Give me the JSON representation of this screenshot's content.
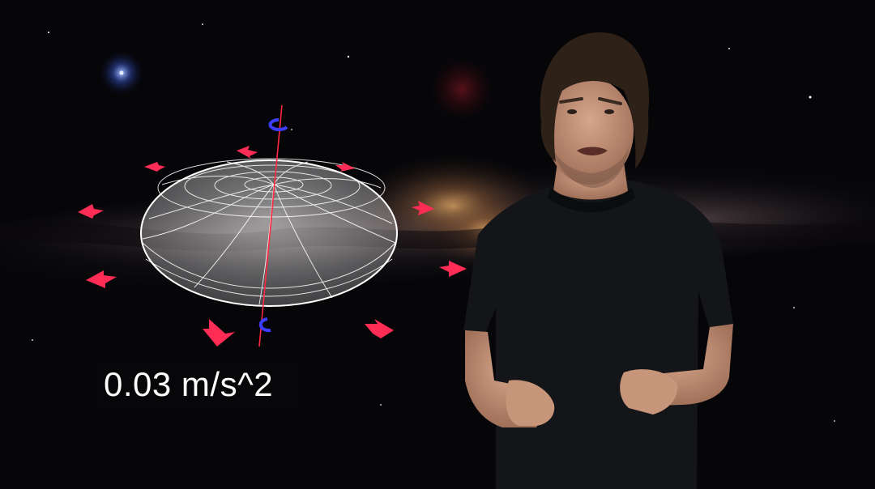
{
  "overlay": {
    "caption": "0.03 m/s^2"
  },
  "palette": {
    "space": "#050507",
    "galaxy_core": "#c8955a",
    "arrow": "#ff2d55",
    "spin_marker": "#3d3dff",
    "axis": "#ff2840",
    "sphere_wire": "#ffffff",
    "shirt": "#131518",
    "skin": "#c49479",
    "hair": "#2e2118"
  }
}
